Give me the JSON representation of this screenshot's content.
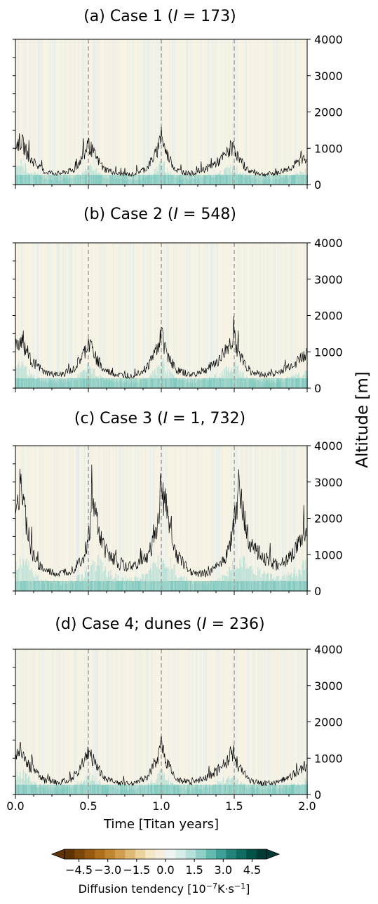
{
  "chart_data": {
    "type": "heatmap",
    "x_label": "Time [Titan years]",
    "y_label": "Altitude [m]",
    "xlim": [
      0.0,
      2.0
    ],
    "ylim": [
      0,
      4000
    ],
    "x_ticks": [
      "0.0",
      "0.5",
      "1.0",
      "1.5",
      "2.0"
    ],
    "y_ticks": [
      "0",
      "1000",
      "2000",
      "3000",
      "4000"
    ],
    "vertical_dashed_lines_at": [
      0.5,
      1.0,
      1.5
    ],
    "panels": [
      {
        "title_prefix": "(a) Case 1 (",
        "title_italic": "I",
        "title_suffix": " = 173)",
        "boundary_layer_height": {
          "x": [
            0.0,
            0.04,
            0.1,
            0.2,
            0.3,
            0.4,
            0.47,
            0.5,
            0.53,
            0.6,
            0.7,
            0.8,
            0.9,
            0.97,
            1.0,
            1.03,
            1.1,
            1.2,
            1.3,
            1.4,
            1.47,
            1.5,
            1.53,
            1.6,
            1.7,
            1.8,
            1.9,
            2.0
          ],
          "y": [
            1100,
            1200,
            700,
            350,
            300,
            400,
            800,
            1100,
            900,
            450,
            300,
            280,
            450,
            900,
            1350,
            900,
            400,
            300,
            420,
            650,
            950,
            1050,
            700,
            380,
            280,
            320,
            500,
            800
          ]
        }
      },
      {
        "title_prefix": "(b) Case 2 (",
        "title_italic": "I",
        "title_suffix": " = 548)",
        "boundary_layer_height": {
          "x": [
            0.0,
            0.04,
            0.1,
            0.2,
            0.3,
            0.4,
            0.47,
            0.5,
            0.53,
            0.6,
            0.7,
            0.8,
            0.9,
            0.97,
            1.0,
            1.03,
            1.1,
            1.2,
            1.3,
            1.4,
            1.47,
            1.5,
            1.53,
            1.6,
            1.7,
            1.8,
            1.9,
            2.0
          ],
          "y": [
            1200,
            1300,
            800,
            420,
            350,
            500,
            950,
            1250,
            1000,
            500,
            360,
            340,
            550,
            1100,
            1500,
            1050,
            500,
            360,
            480,
            800,
            1200,
            1400,
            950,
            480,
            360,
            420,
            650,
            950
          ]
        }
      },
      {
        "title_prefix": "(c) Case 3 (",
        "title_italic": "I",
        "title_suffix": " = 1, 732)",
        "boundary_layer_height": {
          "x": [
            0.0,
            0.03,
            0.06,
            0.1,
            0.15,
            0.2,
            0.3,
            0.4,
            0.47,
            0.5,
            0.53,
            0.56,
            0.6,
            0.7,
            0.8,
            0.9,
            0.97,
            1.0,
            1.03,
            1.1,
            1.2,
            1.3,
            1.4,
            1.47,
            1.5,
            1.53,
            1.56,
            1.6,
            1.7,
            1.8,
            1.9,
            2.0
          ],
          "y": [
            2400,
            2900,
            2200,
            1200,
            750,
            550,
            450,
            600,
            950,
            1400,
            2400,
            1900,
            1200,
            750,
            650,
            900,
            1600,
            3000,
            2300,
            1000,
            550,
            450,
            700,
            1200,
            1800,
            2800,
            2100,
            1400,
            900,
            700,
            1000,
            1600
          ]
        }
      },
      {
        "title_prefix": "(d) Case 4; dunes (",
        "title_italic": "I",
        "title_suffix": " = 236)",
        "boundary_layer_height": {
          "x": [
            0.0,
            0.04,
            0.1,
            0.2,
            0.3,
            0.4,
            0.47,
            0.5,
            0.53,
            0.6,
            0.7,
            0.8,
            0.9,
            0.97,
            1.0,
            1.03,
            1.1,
            1.2,
            1.3,
            1.4,
            1.47,
            1.5,
            1.53,
            1.6,
            1.7,
            1.8,
            1.9,
            2.0
          ],
          "y": [
            1100,
            1250,
            750,
            380,
            320,
            450,
            850,
            1150,
            950,
            480,
            320,
            300,
            480,
            950,
            1400,
            950,
            430,
            320,
            440,
            700,
            1000,
            1150,
            750,
            400,
            300,
            340,
            520,
            850
          ]
        }
      }
    ],
    "colorbar": {
      "label_prefix": "Diffusion tendency [10",
      "label_exp1": "−7",
      "label_mid": "K·s",
      "label_exp2": "−1",
      "label_suffix": "]",
      "ticks": [
        "−4.5",
        "−3.0",
        "−1.5",
        "0.0",
        "1.5",
        "3.0",
        "4.5"
      ],
      "range": [
        -5.25,
        5.25
      ],
      "colors": [
        "#5e3306",
        "#7a460a",
        "#955a10",
        "#ad6f19",
        "#c08530",
        "#d19e4f",
        "#dfba75",
        "#ebd39e",
        "#f4e6c6",
        "#f6efdf",
        "#eef4f2",
        "#d5ece9",
        "#b6e0da",
        "#8fd0c7",
        "#63bbb0",
        "#3ea096",
        "#23847b",
        "#106b61",
        "#03524a",
        "#013b33"
      ]
    },
    "background_color": "#f6f2e4",
    "line_color": "#000000"
  }
}
